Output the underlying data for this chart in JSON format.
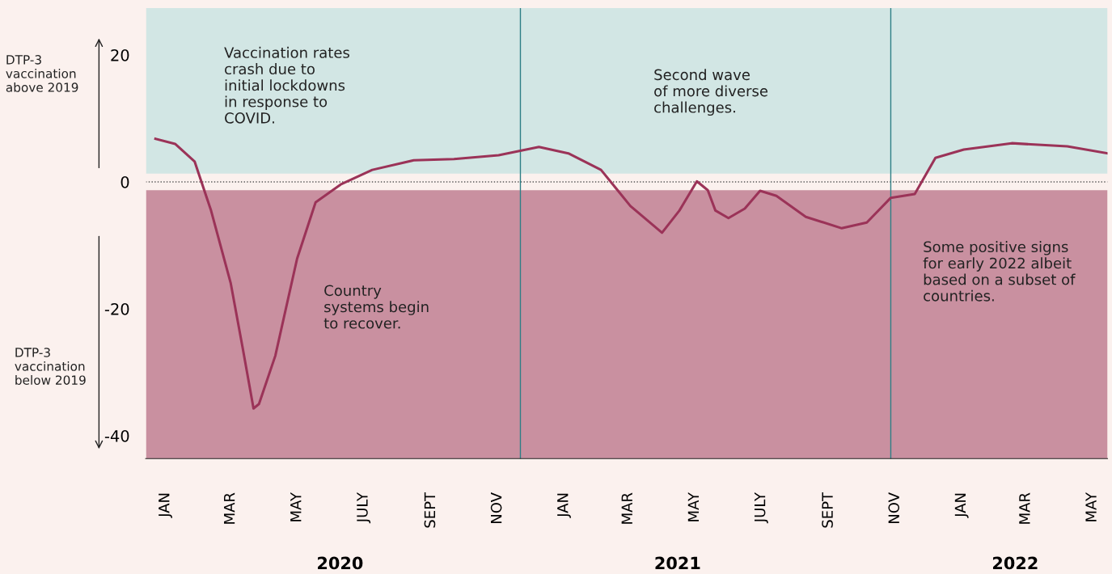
{
  "chart_data": {
    "type": "line",
    "x": [
      "2019-12-23",
      "2020-01-10",
      "2020-01-28",
      "2020-02-12",
      "2020-03-01",
      "2020-03-12",
      "2020-03-22",
      "2020-03-27",
      "2020-04-11",
      "2020-05-01",
      "2020-05-18",
      "2020-06-10",
      "2020-07-09",
      "2020-08-16",
      "2020-09-22",
      "2020-11-02",
      "2020-12-09",
      "2021-01-05",
      "2021-02-04",
      "2021-03-03",
      "2021-04-01",
      "2021-04-17",
      "2021-05-03",
      "2021-05-13",
      "2021-05-20",
      "2021-06-01",
      "2021-06-16",
      "2021-06-30",
      "2021-07-15",
      "2021-08-11",
      "2021-09-13",
      "2021-10-06",
      "2021-10-28",
      "2021-11-19",
      "2021-12-08",
      "2022-01-03",
      "2022-02-16",
      "2022-04-08",
      "2022-05-15"
    ],
    "series": [
      {
        "color": "#9b3358",
        "values": [
          6.8,
          6.0,
          3.2,
          -4.5,
          -15.9,
          -26.1,
          -35.7,
          -35.0,
          -27.4,
          -12.1,
          -3.2,
          -0.4,
          1.9,
          3.4,
          3.6,
          4.2,
          5.5,
          4.5,
          1.9,
          -3.8,
          -8.0,
          -4.5,
          0.1,
          -1.3,
          -4.5,
          -5.7,
          -4.2,
          -1.4,
          -2.2,
          -5.5,
          -7.3,
          -6.4,
          -2.5,
          -1.9,
          3.8,
          5.1,
          6.1,
          5.6,
          4.5
        ]
      }
    ],
    "xlim": [
      "2019-12-14",
      "2022-05-15"
    ],
    "xticks": [
      {
        "value": "2020-01-01",
        "label": "JAN"
      },
      {
        "value": "2020-03-01",
        "label": "MAR"
      },
      {
        "value": "2020-05-01",
        "label": "MAY"
      },
      {
        "value": "2020-07-01",
        "label": "JULY"
      },
      {
        "value": "2020-09-01",
        "label": "SEPT"
      },
      {
        "value": "2020-11-01",
        "label": "NOV"
      },
      {
        "value": "2021-01-01",
        "label": "JAN"
      },
      {
        "value": "2021-03-01",
        "label": "MAR"
      },
      {
        "value": "2021-05-01",
        "label": "MAY"
      },
      {
        "value": "2021-07-01",
        "label": "JULY"
      },
      {
        "value": "2021-09-01",
        "label": "SEPT"
      },
      {
        "value": "2021-11-01",
        "label": "NOV"
      },
      {
        "value": "2022-01-01",
        "label": "JAN"
      },
      {
        "value": "2022-03-01",
        "label": "MAR"
      },
      {
        "value": "2022-05-01",
        "label": "MAY"
      }
    ],
    "ylim": [
      -43.6,
      27.4
    ],
    "yticks": [
      -40,
      -20,
      0,
      20
    ],
    "grid": false,
    "marker": "none",
    "line_style": "solid",
    "bands": [
      {
        "axis": "y",
        "from": 1.3,
        "to": 27.4,
        "color": "#d2e6e4"
      },
      {
        "axis": "y",
        "from": -43.6,
        "to": -1.3,
        "color": "#c990a0"
      }
    ],
    "ref_lines": [
      {
        "axis": "y",
        "value": 0,
        "color": "#555555",
        "line_style": "dotted"
      },
      {
        "axis": "x",
        "value": "2020-11-22",
        "color": "#2e7f86",
        "line_style": "solid"
      },
      {
        "axis": "x",
        "value": "2021-10-28",
        "color": "#2e7f86",
        "line_style": "solid"
      }
    ],
    "annotations": [
      "DTP-3\nvaccination\nabove 2019",
      "DTP-3\nvaccination\nbelow 2019",
      "Vaccination rates\ncrash due to\ninitial lockdowns\nin response to\nCOVID.",
      "Second wave\nof more diverse\nchallenges.",
      "Country\nsystems begin\nto recover.",
      "Some positive signs\nfor early 2022 albeit\nbased on a subset of\ncountries.",
      "2020",
      "2021",
      "2022"
    ]
  }
}
